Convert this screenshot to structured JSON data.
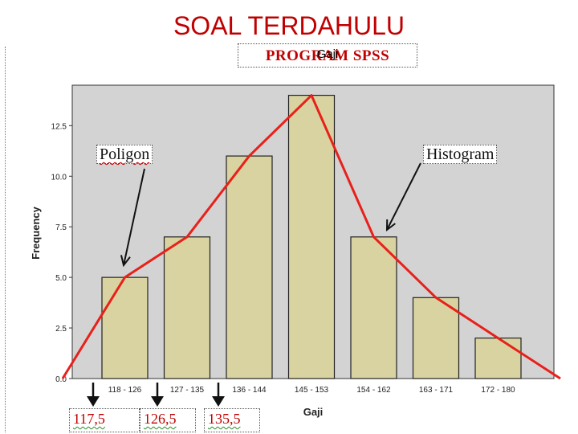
{
  "slide": {
    "title": "SOAL TERDAHULU",
    "spss_label": "PROGRAM SPSS"
  },
  "annotations": {
    "poligon": "Poligon",
    "histogram": "Histogram",
    "boundaries": [
      "117,5",
      "126,5",
      "135,5"
    ]
  },
  "colors": {
    "bar_fill": "#d8d3a0",
    "bar_stroke": "#222222",
    "plot_background": "#d3d3d3",
    "polygon_line": "#e8201a",
    "title_red": "#c00000"
  },
  "chart_data": {
    "type": "bar",
    "title": "Gaji",
    "xlabel": "Gaji",
    "ylabel": "Frequency",
    "categories": [
      "118 - 126",
      "127 - 135",
      "136 - 144",
      "145 - 153",
      "154 - 162",
      "163 - 171",
      "172 - 180"
    ],
    "values": [
      5,
      7,
      11,
      14,
      7,
      4,
      2
    ],
    "ylim": [
      0,
      14.5
    ],
    "yticks": [
      "0.0",
      "2.5",
      "5.0",
      "7.5",
      "10.0",
      "12.5"
    ],
    "ytick_values": [
      0,
      2.5,
      5,
      7.5,
      10,
      12.5
    ],
    "polygon_overlay": {
      "name": "Poligon",
      "values": [
        0,
        5,
        7,
        11,
        14,
        7,
        4,
        2,
        0
      ]
    },
    "grid": false
  }
}
